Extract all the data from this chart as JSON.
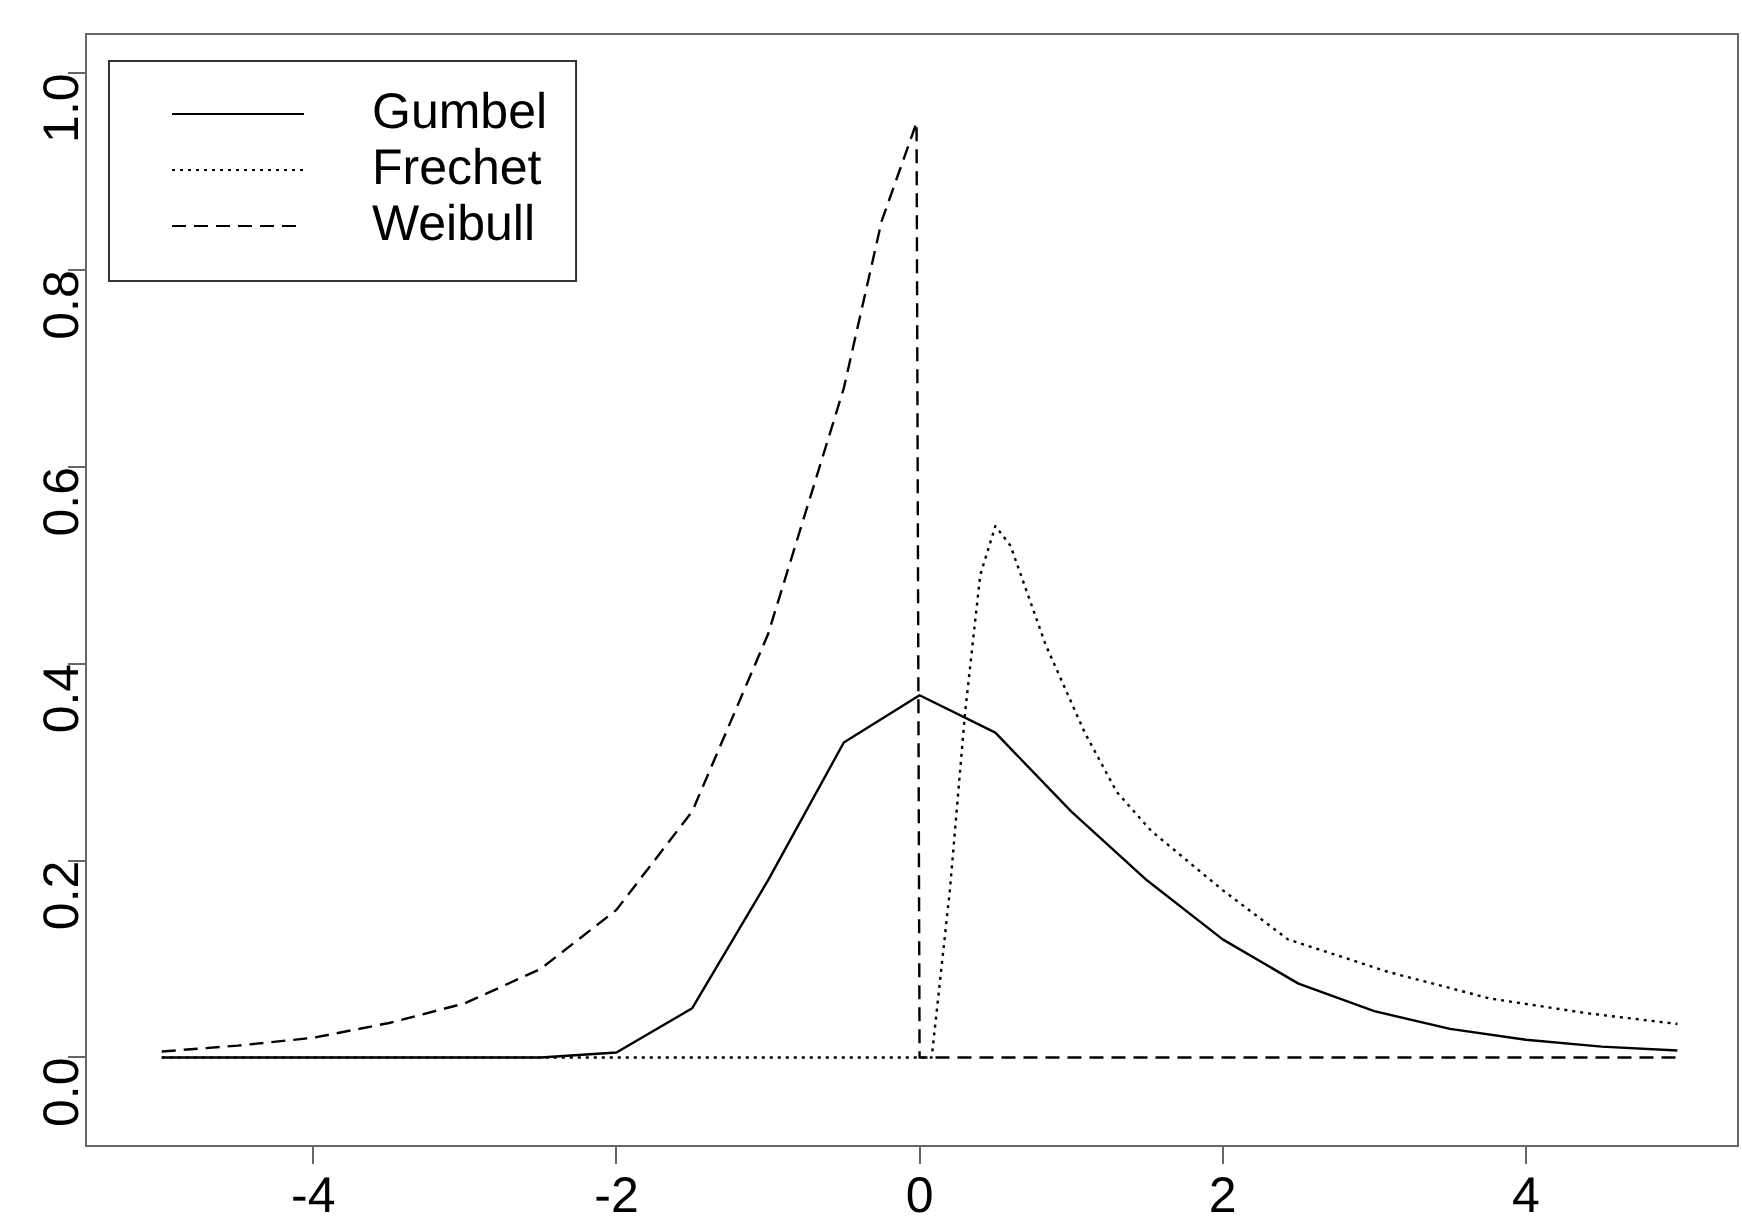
{
  "chart_data": {
    "type": "line",
    "xlim": [
      -5.5,
      5.4
    ],
    "xticks": [
      -4,
      -2,
      0,
      2,
      4
    ],
    "ylim": [
      -0.09,
      1.04
    ],
    "yticks": [
      {
        "value": 0,
        "label": "0.0"
      },
      0.2,
      0.4,
      0.6,
      0.8,
      {
        "value": 1,
        "label": "1.0"
      }
    ],
    "grid": false,
    "legend": "top left",
    "marker": "none",
    "series": [
      {
        "name": "Gumbel",
        "color": "#000000",
        "line_style": "solid",
        "x": [
          -5,
          -3,
          -2.5,
          -2,
          -1.5,
          -1,
          -0.5,
          0,
          0.5,
          1,
          1.5,
          2,
          2.5,
          3,
          3.5,
          4,
          4.5,
          5
        ],
        "values": [
          0,
          0,
          0,
          0.005,
          0.05,
          0.18,
          0.32,
          0.368,
          0.33,
          0.25,
          0.18,
          0.12,
          0.075,
          0.047,
          0.029,
          0.018,
          0.011,
          0.007
        ]
      },
      {
        "name": "Frechet",
        "color": "#000000",
        "line_style": "dotted",
        "x": [
          -5,
          0.08,
          0.2,
          0.3,
          0.4,
          0.5,
          0.6,
          0.83,
          1.09,
          1.3,
          1.53,
          2,
          2.43,
          3.09,
          3.76,
          4.4,
          5
        ],
        "values": [
          0,
          0,
          0.17,
          0.35,
          0.49,
          0.54,
          0.52,
          0.42,
          0.33,
          0.27,
          0.23,
          0.17,
          0.12,
          0.087,
          0.06,
          0.045,
          0.034
        ]
      },
      {
        "name": "Weibull",
        "color": "#000000",
        "line_style": "dashed",
        "x": [
          -5,
          -4.5,
          -4,
          -3.5,
          -3,
          -2.5,
          -2,
          -1.5,
          -1,
          -0.5,
          -0.25,
          -0.02,
          0,
          5
        ],
        "values": [
          0.006,
          0.012,
          0.02,
          0.035,
          0.055,
          0.09,
          0.15,
          0.25,
          0.43,
          0.68,
          0.85,
          0.95,
          0,
          0
        ]
      }
    ]
  }
}
